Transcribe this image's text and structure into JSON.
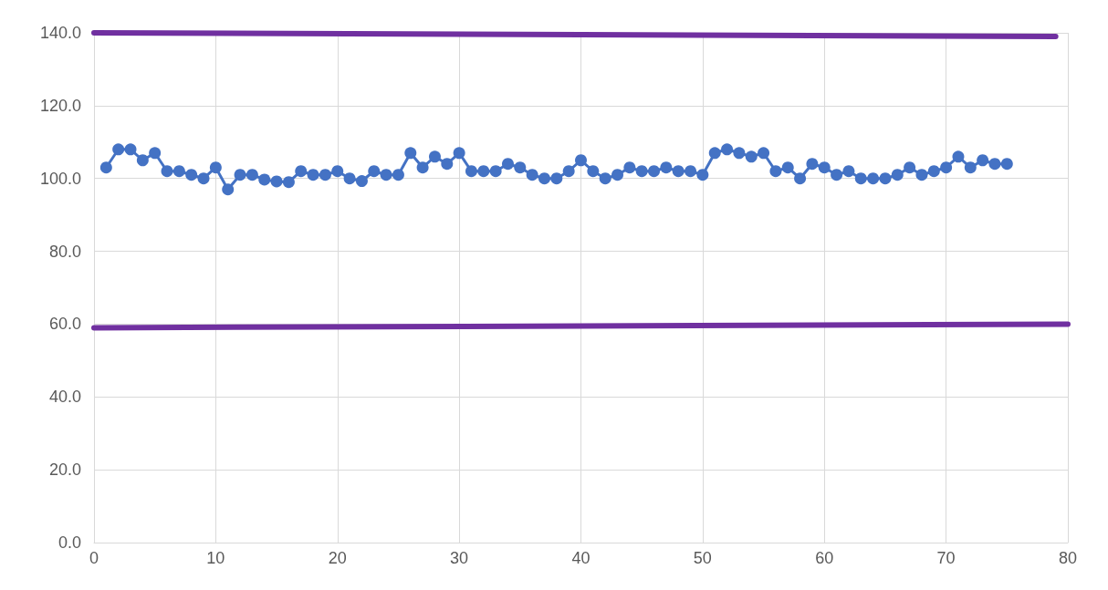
{
  "chart_data": {
    "type": "line",
    "marker": "circle",
    "grid": true,
    "xlim": [
      0,
      80
    ],
    "xticks": [
      0,
      10,
      20,
      30,
      40,
      50,
      60,
      70,
      80
    ],
    "ylim": [
      0,
      140
    ],
    "yticks": [
      {
        "value": 0,
        "label": "0.0"
      },
      {
        "value": 20,
        "label": "20.0"
      },
      {
        "value": 40,
        "label": "40.0"
      },
      {
        "value": 60,
        "label": "60.0"
      },
      {
        "value": 80,
        "label": "80.0"
      },
      {
        "value": 100,
        "label": "100.0"
      },
      {
        "value": 120,
        "label": "120.0"
      },
      {
        "value": 140,
        "label": "140.0"
      }
    ],
    "series": [
      {
        "color": "#4472c4",
        "x": [
          1,
          2,
          3,
          4,
          5,
          6,
          7,
          8,
          9,
          10,
          11,
          12,
          13,
          14,
          15,
          16,
          17,
          18,
          19,
          20,
          21,
          22,
          23,
          24,
          25,
          26,
          27,
          28,
          29,
          30,
          31,
          32,
          33,
          34,
          35,
          36,
          37,
          38,
          39,
          40,
          41,
          42,
          43,
          44,
          45,
          46,
          47,
          48,
          49,
          50,
          51,
          52,
          53,
          54,
          55,
          56,
          57,
          58,
          59,
          60,
          61,
          62,
          63,
          64,
          65,
          66,
          67,
          68,
          69,
          70,
          71,
          72,
          73,
          74,
          75
        ],
        "values": [
          103,
          108,
          108,
          105,
          107,
          102,
          102,
          101,
          100,
          103,
          97,
          101,
          101,
          99.7,
          99.2,
          99,
          102,
          101,
          101,
          102,
          100,
          99.3,
          102,
          101,
          101,
          107,
          103,
          106,
          104,
          107,
          102,
          102,
          102,
          104,
          103,
          101,
          100,
          100,
          102,
          105,
          102,
          100,
          101,
          103,
          102,
          102,
          103,
          102,
          102,
          101,
          107,
          108,
          107,
          106,
          107,
          102,
          103,
          100,
          104,
          103,
          101,
          102,
          100,
          100,
          100,
          101,
          103,
          101,
          102,
          103,
          106,
          103,
          105,
          104,
          104
        ]
      },
      {
        "color": "#7030a0",
        "marker": "none",
        "x": [
          0,
          79
        ],
        "values": [
          140,
          139
        ]
      },
      {
        "color": "#7030a0",
        "marker": "none",
        "x": [
          0,
          80
        ],
        "values": [
          59,
          60
        ]
      }
    ]
  }
}
